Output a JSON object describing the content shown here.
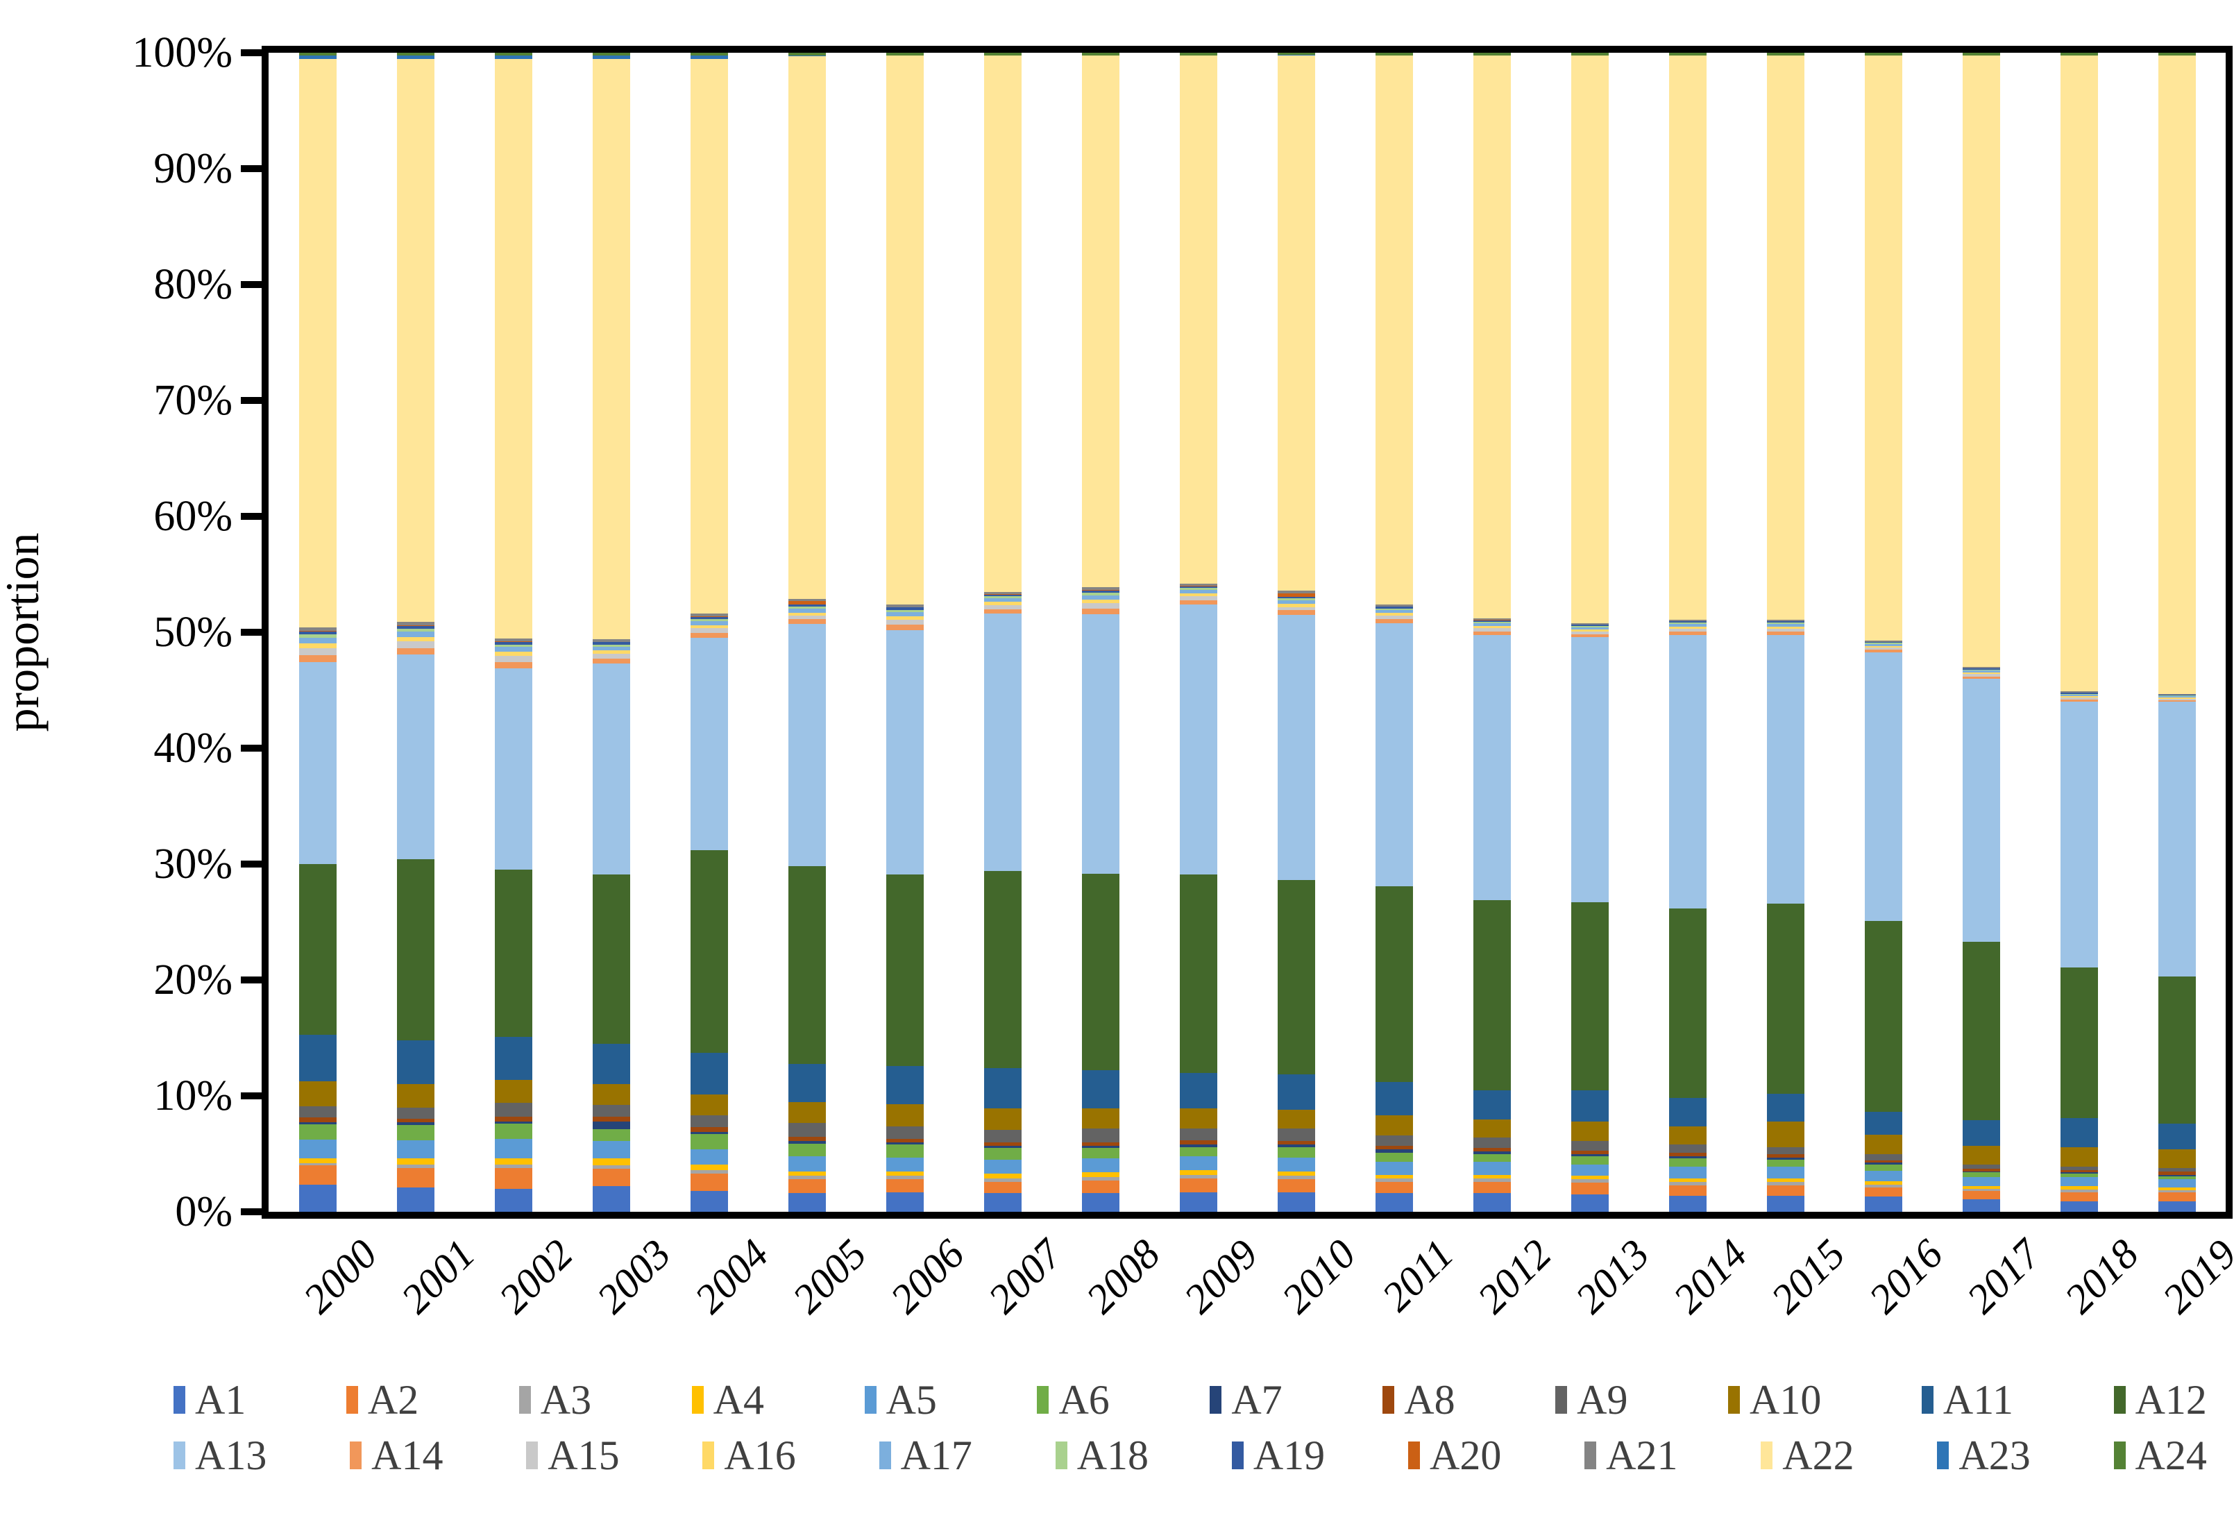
{
  "y_axis_title": "proportion",
  "chart_data": {
    "type": "bar",
    "subtype": "stacked-100-percent",
    "title": "",
    "xlabel": "",
    "ylabel": "proportion",
    "ylim": [
      0,
      100
    ],
    "grid": false,
    "legend_position": "bottom",
    "y_ticks": [
      "0%",
      "10%",
      "20%",
      "30%",
      "40%",
      "50%",
      "60%",
      "70%",
      "80%",
      "90%",
      "100%"
    ],
    "categories": [
      "2000",
      "2001",
      "2002",
      "2003",
      "2004",
      "2005",
      "2006",
      "2007",
      "2008",
      "2009",
      "2010",
      "2011",
      "2012",
      "2013",
      "2014",
      "2015",
      "2016",
      "2017",
      "2018",
      "2019"
    ],
    "series": [
      {
        "name": "A1",
        "color": "#4472C4",
        "values": [
          2.3,
          2.1,
          2.0,
          2.2,
          1.8,
          1.6,
          1.7,
          1.6,
          1.6,
          1.7,
          1.7,
          1.6,
          1.6,
          1.5,
          1.4,
          1.4,
          1.3,
          1.1,
          0.9,
          0.9
        ]
      },
      {
        "name": "A2",
        "color": "#ED7D31",
        "values": [
          1.7,
          1.7,
          1.8,
          1.5,
          1.5,
          1.2,
          1.1,
          1.0,
          1.1,
          1.2,
          1.1,
          1.0,
          1.0,
          1.0,
          0.9,
          0.9,
          0.8,
          0.7,
          0.8,
          0.8
        ]
      },
      {
        "name": "A3",
        "color": "#A5A5A5",
        "values": [
          0.2,
          0.3,
          0.3,
          0.3,
          0.3,
          0.3,
          0.3,
          0.3,
          0.3,
          0.3,
          0.3,
          0.3,
          0.3,
          0.3,
          0.3,
          0.3,
          0.25,
          0.2,
          0.2,
          0.15
        ]
      },
      {
        "name": "A4",
        "color": "#FFC000",
        "values": [
          0.4,
          0.5,
          0.5,
          0.6,
          0.5,
          0.4,
          0.4,
          0.4,
          0.4,
          0.4,
          0.4,
          0.3,
          0.3,
          0.3,
          0.3,
          0.3,
          0.3,
          0.2,
          0.3,
          0.25
        ]
      },
      {
        "name": "A5",
        "color": "#5B9BD5",
        "values": [
          1.6,
          1.6,
          1.7,
          1.5,
          1.3,
          1.3,
          1.2,
          1.2,
          1.2,
          1.2,
          1.2,
          1.1,
          1.1,
          1.0,
          1.0,
          1.0,
          0.9,
          0.8,
          0.8,
          0.7
        ]
      },
      {
        "name": "A6",
        "color": "#70AD47",
        "values": [
          1.3,
          1.3,
          1.3,
          1.0,
          1.3,
          1.1,
          1.1,
          1.0,
          0.9,
          0.8,
          0.9,
          0.8,
          0.7,
          0.7,
          0.7,
          0.6,
          0.5,
          0.4,
          0.3,
          0.25
        ]
      },
      {
        "name": "A7",
        "color": "#264478",
        "values": [
          0.2,
          0.2,
          0.2,
          0.7,
          0.2,
          0.2,
          0.2,
          0.2,
          0.2,
          0.2,
          0.2,
          0.3,
          0.2,
          0.2,
          0.2,
          0.2,
          0.2,
          0.1,
          0.1,
          0.1
        ]
      },
      {
        "name": "A8",
        "color": "#9E480E",
        "values": [
          0.4,
          0.3,
          0.4,
          0.4,
          0.4,
          0.4,
          0.3,
          0.3,
          0.3,
          0.4,
          0.3,
          0.3,
          0.3,
          0.3,
          0.3,
          0.3,
          0.2,
          0.2,
          0.2,
          0.3
        ]
      },
      {
        "name": "A9",
        "color": "#636363",
        "values": [
          1.0,
          1.0,
          1.2,
          1.0,
          1.0,
          1.2,
          1.1,
          1.1,
          1.2,
          1.0,
          1.1,
          0.9,
          0.9,
          0.8,
          0.7,
          0.6,
          0.5,
          0.4,
          0.3,
          0.35
        ]
      },
      {
        "name": "A10",
        "color": "#997300",
        "values": [
          2.1,
          2.0,
          2.0,
          1.8,
          1.8,
          1.8,
          1.9,
          1.8,
          1.7,
          1.7,
          1.6,
          1.7,
          1.6,
          1.7,
          1.6,
          2.2,
          1.7,
          1.6,
          1.7,
          1.6
        ]
      },
      {
        "name": "A11",
        "color": "#255E91",
        "values": [
          4.0,
          3.8,
          3.7,
          3.5,
          3.6,
          3.3,
          3.3,
          3.5,
          3.3,
          3.1,
          3.1,
          2.9,
          2.5,
          2.7,
          2.4,
          2.4,
          2.0,
          2.2,
          2.5,
          2.2
        ]
      },
      {
        "name": "A12",
        "color": "#43682B",
        "values": [
          14.7,
          15.6,
          14.4,
          14.6,
          17.5,
          17.1,
          16.5,
          17.0,
          17.0,
          17.1,
          16.8,
          16.9,
          16.4,
          16.2,
          16.4,
          16.4,
          16.45,
          15.4,
          13.0,
          12.7
        ]
      },
      {
        "name": "A13",
        "color": "#9DC3E6",
        "values": [
          17.4,
          17.7,
          17.4,
          18.2,
          18.3,
          20.9,
          21.1,
          22.2,
          22.4,
          23.3,
          22.9,
          22.7,
          22.9,
          22.9,
          23.6,
          23.2,
          23.2,
          22.7,
          22.9,
          23.7
        ]
      },
      {
        "name": "A14",
        "color": "#F1975A",
        "values": [
          0.6,
          0.56,
          0.52,
          0.42,
          0.42,
          0.4,
          0.44,
          0.38,
          0.46,
          0.36,
          0.38,
          0.32,
          0.28,
          0.24,
          0.26,
          0.26,
          0.2,
          0.2,
          0.18,
          0.14
        ]
      },
      {
        "name": "A15",
        "color": "#C9C9C9",
        "values": [
          0.6,
          0.56,
          0.52,
          0.42,
          0.42,
          0.3,
          0.44,
          0.38,
          0.46,
          0.36,
          0.28,
          0.32,
          0.28,
          0.24,
          0.26,
          0.26,
          0.2,
          0.2,
          0.18,
          0.14
        ]
      },
      {
        "name": "A16",
        "color": "#FFD966",
        "values": [
          0.42,
          0.39,
          0.36,
          0.29,
          0.29,
          0.28,
          0.31,
          0.27,
          0.32,
          0.25,
          0.27,
          0.22,
          0.2,
          0.17,
          0.18,
          0.18,
          0.14,
          0.14,
          0.13,
          0.1
        ]
      },
      {
        "name": "A17",
        "color": "#7CAFDD",
        "values": [
          0.48,
          0.45,
          0.42,
          0.34,
          0.34,
          0.32,
          0.35,
          0.3,
          0.37,
          0.29,
          0.3,
          0.26,
          0.22,
          0.19,
          0.21,
          0.21,
          0.16,
          0.16,
          0.14,
          0.11
        ]
      },
      {
        "name": "A18",
        "color": "#A9D18E",
        "values": [
          0.27,
          0.25,
          0.23,
          0.19,
          0.19,
          0.18,
          0.2,
          0.17,
          0.21,
          0.16,
          0.17,
          0.14,
          0.13,
          0.11,
          0.12,
          0.12,
          0.09,
          0.09,
          0.08,
          0.06
        ]
      },
      {
        "name": "A19",
        "color": "#335AA1",
        "values": [
          0.27,
          0.25,
          0.23,
          0.19,
          0.19,
          0.18,
          0.2,
          0.17,
          0.21,
          0.16,
          0.17,
          0.14,
          0.13,
          0.11,
          0.12,
          0.12,
          0.09,
          0.09,
          0.08,
          0.06
        ]
      },
      {
        "name": "A20",
        "color": "#CB6015",
        "values": [
          0.06,
          0.06,
          0.05,
          0.04,
          0.04,
          0.3,
          0.04,
          0.04,
          0.05,
          0.04,
          0.3,
          0.03,
          0.03,
          0.02,
          0.03,
          0.03,
          0.02,
          0.02,
          0.02,
          0.02
        ]
      },
      {
        "name": "A21",
        "color": "#848484",
        "values": [
          0.3,
          0.28,
          0.26,
          0.21,
          0.21,
          0.2,
          0.22,
          0.19,
          0.23,
          0.18,
          0.19,
          0.16,
          0.14,
          0.12,
          0.13,
          0.13,
          0.1,
          0.1,
          0.09,
          0.07
        ]
      },
      {
        "name": "A22",
        "color": "#FFE699",
        "values": [
          48.9,
          48.6,
          50.0,
          50.1,
          47.9,
          46.9,
          47.35,
          46.25,
          45.85,
          45.55,
          46.25,
          47.35,
          48.55,
          48.95,
          48.65,
          48.65,
          50.45,
          52.75,
          54.85,
          55.05
        ]
      },
      {
        "name": "A23",
        "color": "#2E75B6",
        "values": [
          0.25,
          0.25,
          0.25,
          0.25,
          0.25,
          0.1,
          0.05,
          0.05,
          0.05,
          0.05,
          0.05,
          0.05,
          0.05,
          0.05,
          0.05,
          0.05,
          0.05,
          0.05,
          0.05,
          0.05
        ]
      },
      {
        "name": "A24",
        "color": "#548235",
        "values": [
          0.25,
          0.25,
          0.25,
          0.25,
          0.25,
          0.2,
          0.2,
          0.2,
          0.2,
          0.2,
          0.2,
          0.2,
          0.2,
          0.2,
          0.2,
          0.2,
          0.2,
          0.2,
          0.2,
          0.2
        ]
      }
    ],
    "legend_rows": [
      [
        "A1",
        "A2",
        "A3",
        "A4",
        "A5",
        "A6",
        "A7",
        "A8",
        "A9",
        "A10",
        "A11",
        "A12"
      ],
      [
        "A13",
        "A14",
        "A15",
        "A16",
        "A17",
        "A18",
        "A19",
        "A20",
        "A21",
        "A22",
        "A23",
        "A24"
      ]
    ]
  }
}
